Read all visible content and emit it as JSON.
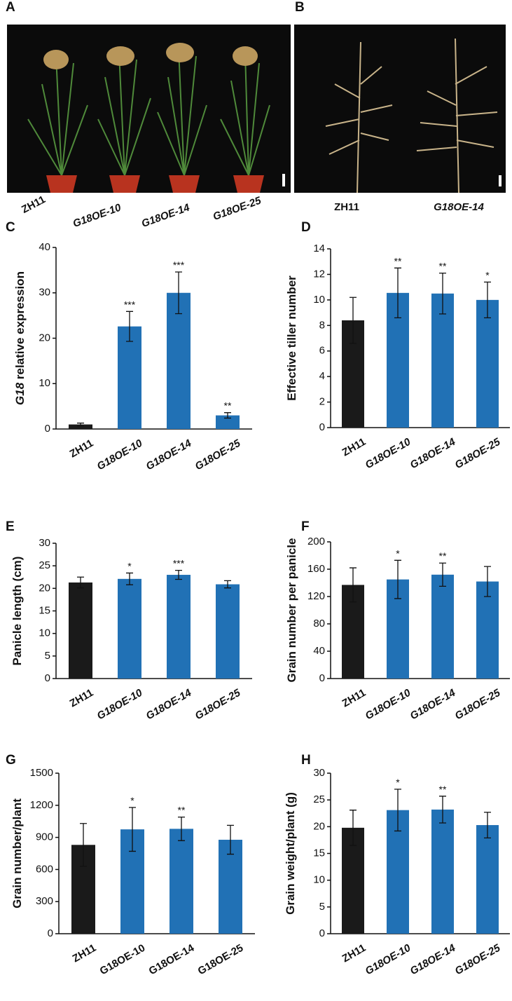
{
  "photos": [
    {
      "panel": "A",
      "labels": [
        "ZH11",
        "G18OE-10",
        "G18OE-14",
        "G18OE-25"
      ],
      "label_italic": [
        false,
        true,
        true,
        true
      ]
    },
    {
      "panel": "B",
      "labels": [
        "ZH11",
        "G18OE-14"
      ],
      "label_italic": [
        false,
        true
      ]
    }
  ],
  "chart_data": [
    {
      "type": "bar",
      "panel": "C",
      "ylabel_italic": "G18",
      "ylabel": "relative expression",
      "categories": [
        "ZH11",
        "G18OE-10",
        "G18OE-14",
        "G18OE-25"
      ],
      "category_italic": [
        false,
        true,
        true,
        true
      ],
      "values": [
        1,
        22.6,
        30,
        3
      ],
      "errors": [
        0.3,
        3.3,
        4.6,
        0.6
      ],
      "stars": [
        null,
        "***",
        "***",
        "**"
      ],
      "colors": [
        "#1a1a1a",
        "#2171b5",
        "#2171b5",
        "#2171b5"
      ],
      "ylim": [
        0,
        40
      ],
      "yticks": [
        0,
        10,
        20,
        30,
        40
      ]
    },
    {
      "type": "bar",
      "panel": "D",
      "ylabel": "Effective tiller number",
      "categories": [
        "ZH11",
        "G18OE-10",
        "G18OE-14",
        "G18OE-25"
      ],
      "category_italic": [
        false,
        true,
        true,
        true
      ],
      "values": [
        8.4,
        10.55,
        10.5,
        10.0
      ],
      "errors": [
        1.8,
        1.95,
        1.6,
        1.4
      ],
      "stars": [
        null,
        "**",
        "**",
        "*"
      ],
      "colors": [
        "#1a1a1a",
        "#2171b5",
        "#2171b5",
        "#2171b5"
      ],
      "ylim": [
        0,
        14
      ],
      "yticks": [
        0,
        2,
        4,
        6,
        8,
        10,
        12,
        14
      ]
    },
    {
      "type": "bar",
      "panel": "E",
      "ylabel": "Panicle length (cm)",
      "categories": [
        "ZH11",
        "G18OE-10",
        "G18OE-14",
        "G18OE-25"
      ],
      "category_italic": [
        false,
        true,
        true,
        true
      ],
      "values": [
        21.3,
        22.1,
        23.0,
        20.9
      ],
      "errors": [
        1.2,
        1.3,
        1.0,
        0.8
      ],
      "stars": [
        null,
        "*",
        "***",
        null
      ],
      "colors": [
        "#1a1a1a",
        "#2171b5",
        "#2171b5",
        "#2171b5"
      ],
      "ylim": [
        0,
        30
      ],
      "yticks": [
        0,
        5,
        10,
        15,
        20,
        25,
        30
      ]
    },
    {
      "type": "bar",
      "panel": "F",
      "ylabel": "Grain number per panicle",
      "categories": [
        "ZH11",
        "G18OE-10",
        "G18OE-14",
        "G18OE-25"
      ],
      "category_italic": [
        false,
        true,
        true,
        true
      ],
      "values": [
        137,
        145,
        152,
        142
      ],
      "errors": [
        25,
        28,
        17,
        22
      ],
      "stars": [
        null,
        "*",
        "**",
        null
      ],
      "colors": [
        "#1a1a1a",
        "#2171b5",
        "#2171b5",
        "#2171b5"
      ],
      "ylim": [
        0,
        200
      ],
      "yticks": [
        0,
        40,
        80,
        120,
        160,
        200
      ]
    },
    {
      "type": "bar",
      "panel": "G",
      "ylabel": "Grain number/plant",
      "categories": [
        "ZH11",
        "G18OE-10",
        "G18OE-14",
        "G18OE-25"
      ],
      "category_italic": [
        false,
        false,
        false,
        false
      ],
      "values": [
        830,
        975,
        980,
        878
      ],
      "errors": [
        200,
        205,
        110,
        135
      ],
      "stars": [
        null,
        "*",
        "**",
        null
      ],
      "colors": [
        "#1a1a1a",
        "#2171b5",
        "#2171b5",
        "#2171b5"
      ],
      "ylim": [
        0,
        1500
      ],
      "yticks": [
        0,
        300,
        600,
        900,
        1200,
        1500
      ]
    },
    {
      "type": "bar",
      "panel": "H",
      "ylabel": "Grain weight/plant (g)",
      "categories": [
        "ZH11",
        "G18OE-10",
        "G18OE-14",
        "G18OE-25"
      ],
      "category_italic": [
        false,
        true,
        true,
        true
      ],
      "values": [
        19.8,
        23.1,
        23.2,
        20.3
      ],
      "errors": [
        3.3,
        3.9,
        2.5,
        2.4
      ],
      "stars": [
        null,
        "*",
        "**",
        null
      ],
      "colors": [
        "#1a1a1a",
        "#2171b5",
        "#2171b5",
        "#2171b5"
      ],
      "ylim": [
        0,
        30
      ],
      "yticks": [
        0,
        5,
        10,
        15,
        20,
        25,
        30
      ]
    }
  ]
}
